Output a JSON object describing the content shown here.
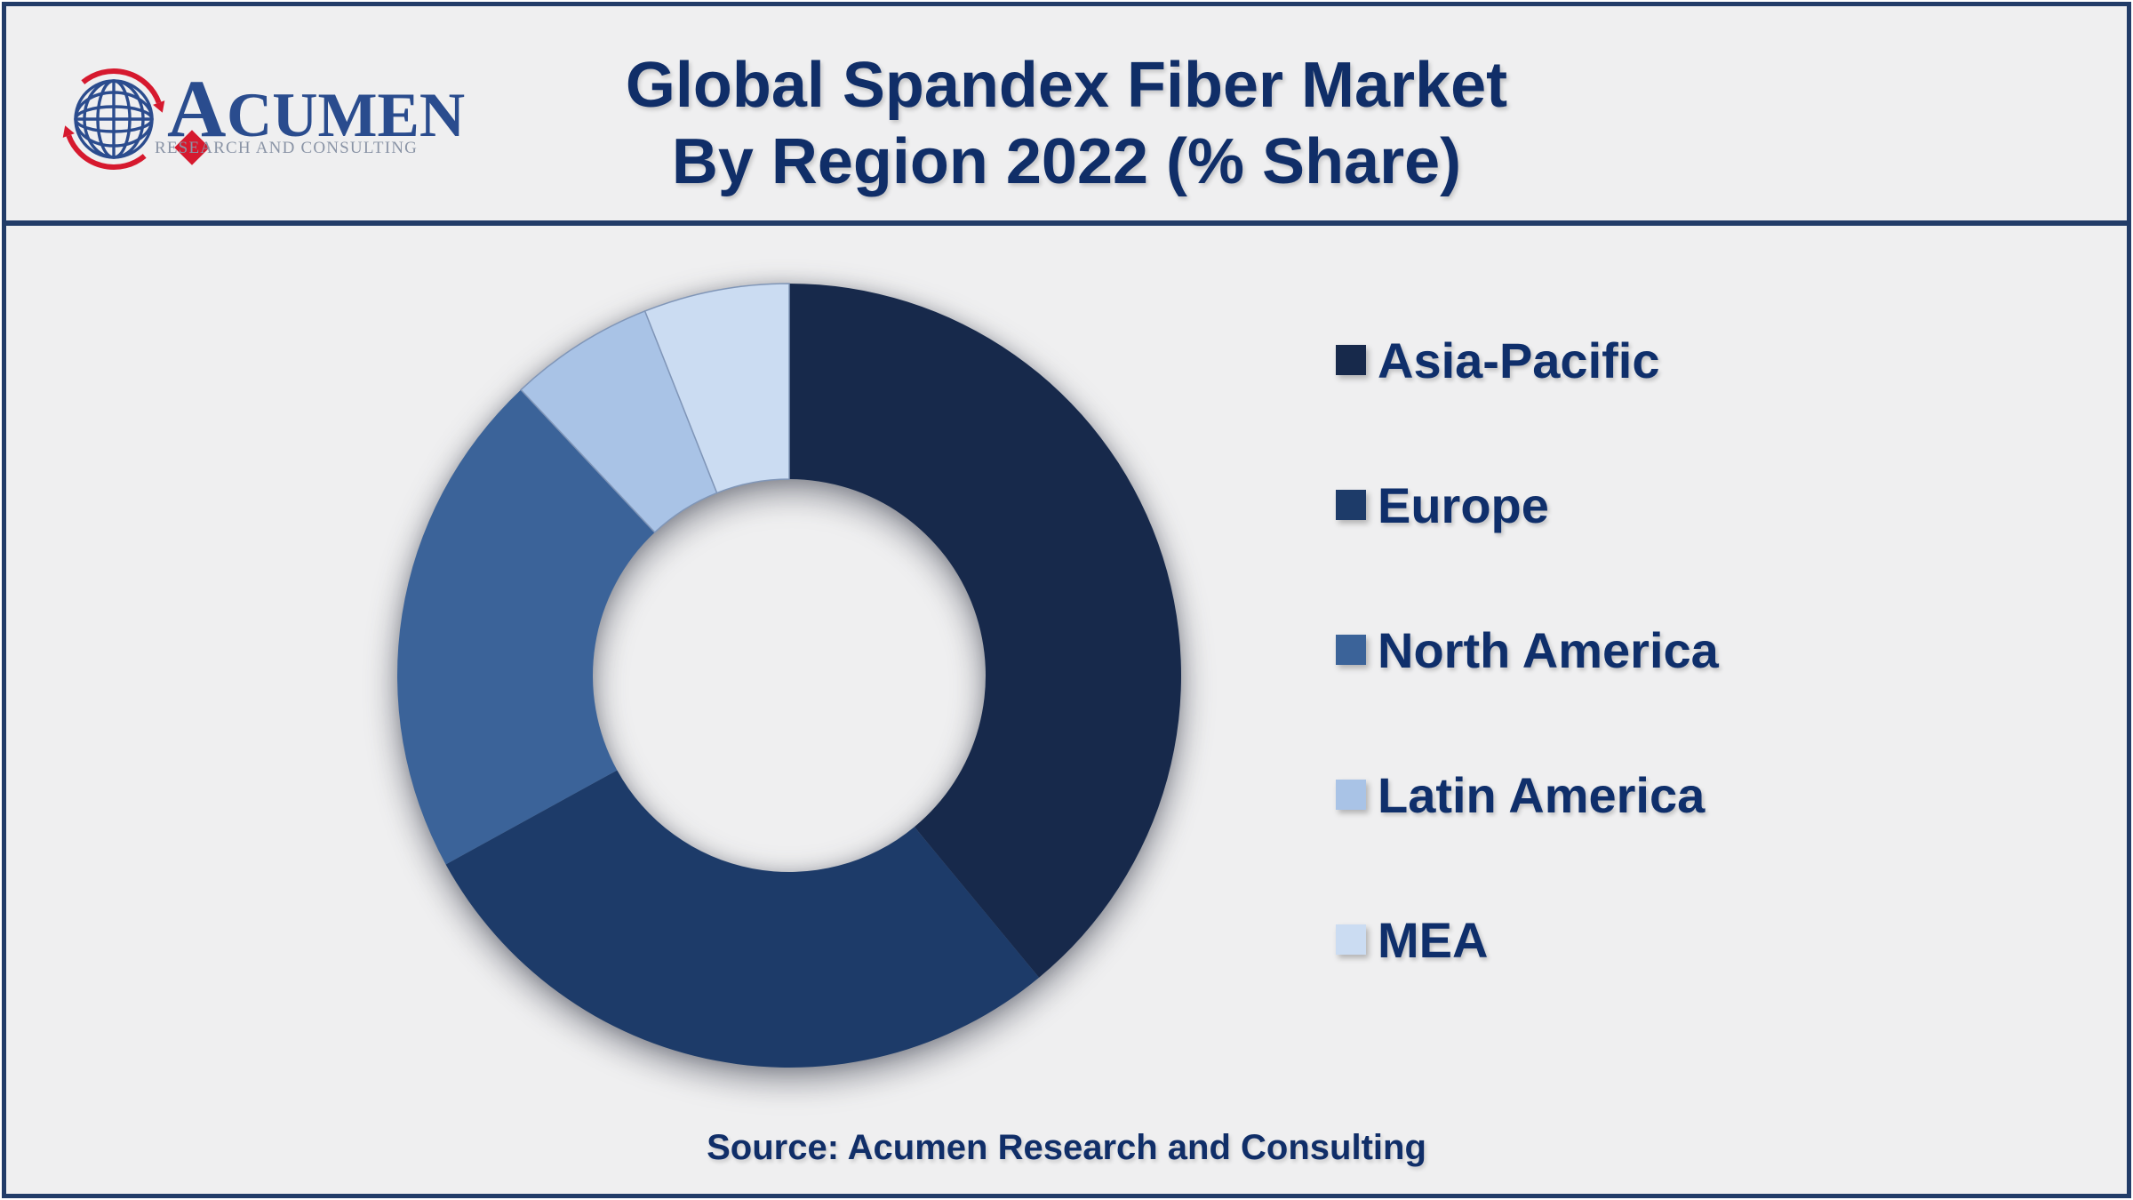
{
  "header": {
    "logo": {
      "brand_initial": "A",
      "brand_rest": "CUMEN",
      "tagline": "RESEARCH AND CONSULTING"
    },
    "title_line1": "Global Spandex Fiber Market",
    "title_line2": "By Region 2022 (% Share)"
  },
  "chart_data": {
    "type": "pie",
    "subtype": "donut",
    "title": "Global Spandex Fiber Market By Region 2022 (% Share)",
    "unit": "% share",
    "categories": [
      "Asia-Pacific",
      "Europe",
      "North America",
      "Latin America",
      "MEA"
    ],
    "values": [
      39,
      28,
      21,
      6,
      6
    ],
    "colors": [
      "#17294B",
      "#1D3B69",
      "#3B6399",
      "#A9C3E6",
      "#CBDCF2"
    ],
    "slice_stroke": [
      null,
      null,
      null,
      "#8096B8",
      "#8096B8"
    ],
    "start_angle_deg": 0,
    "direction": "clockwise",
    "inner_radius_ratio": 0.5,
    "legend_position": "right",
    "data_labels": false
  },
  "footer": {
    "source": "Source: Acumen Research and Consulting"
  },
  "colors": {
    "background": "#EFEFF0",
    "frame_border": "#223C68",
    "title_text": "#102E68",
    "legend_text": "#0F2F6B",
    "source_text": "#102E68",
    "logo_blue": "#2A4C8E",
    "logo_red": "#D6192E",
    "logo_tagline_gray": "#8A94A6"
  }
}
